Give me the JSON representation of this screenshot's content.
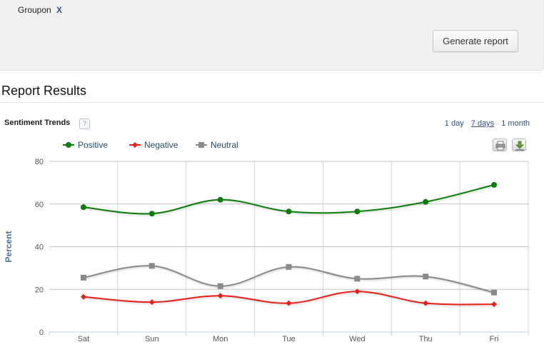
{
  "filters": {
    "tag_label": "Groupon",
    "remove_label": "X"
  },
  "actions": {
    "generate_label": "Generate report"
  },
  "results": {
    "title": "Report Results"
  },
  "panel": {
    "title": "Sentiment Trends",
    "help_icon": "?",
    "ranges": [
      "1 day",
      "7 days",
      "1 month"
    ],
    "active_range": "7 days",
    "tools": [
      {
        "icon": "print-icon"
      },
      {
        "icon": "download-icon"
      }
    ]
  },
  "chart_data": {
    "type": "line",
    "categories": [
      "Sat",
      "Sun",
      "Mon",
      "Tue",
      "Wed",
      "Thu",
      "Fri"
    ],
    "series": [
      {
        "name": "Positive",
        "color": "#0a7d0a",
        "marker": "circle",
        "values": [
          58.5,
          55.5,
          62,
          56.5,
          56.5,
          61,
          69
        ]
      },
      {
        "name": "Negative",
        "color": "#e8201b",
        "marker": "diamond",
        "values": [
          16.5,
          14,
          17,
          13.5,
          19,
          13.5,
          13
        ]
      },
      {
        "name": "Neutral",
        "color": "#8a8a8a",
        "marker": "square",
        "values": [
          25.5,
          31,
          21.5,
          30.5,
          25,
          26,
          18.5
        ]
      }
    ],
    "ylabel": "Percent",
    "ylim": [
      0,
      80
    ],
    "yticks": [
      0,
      20,
      40,
      60,
      80
    ],
    "grid": true,
    "legend": "top-left",
    "smooth": true
  }
}
